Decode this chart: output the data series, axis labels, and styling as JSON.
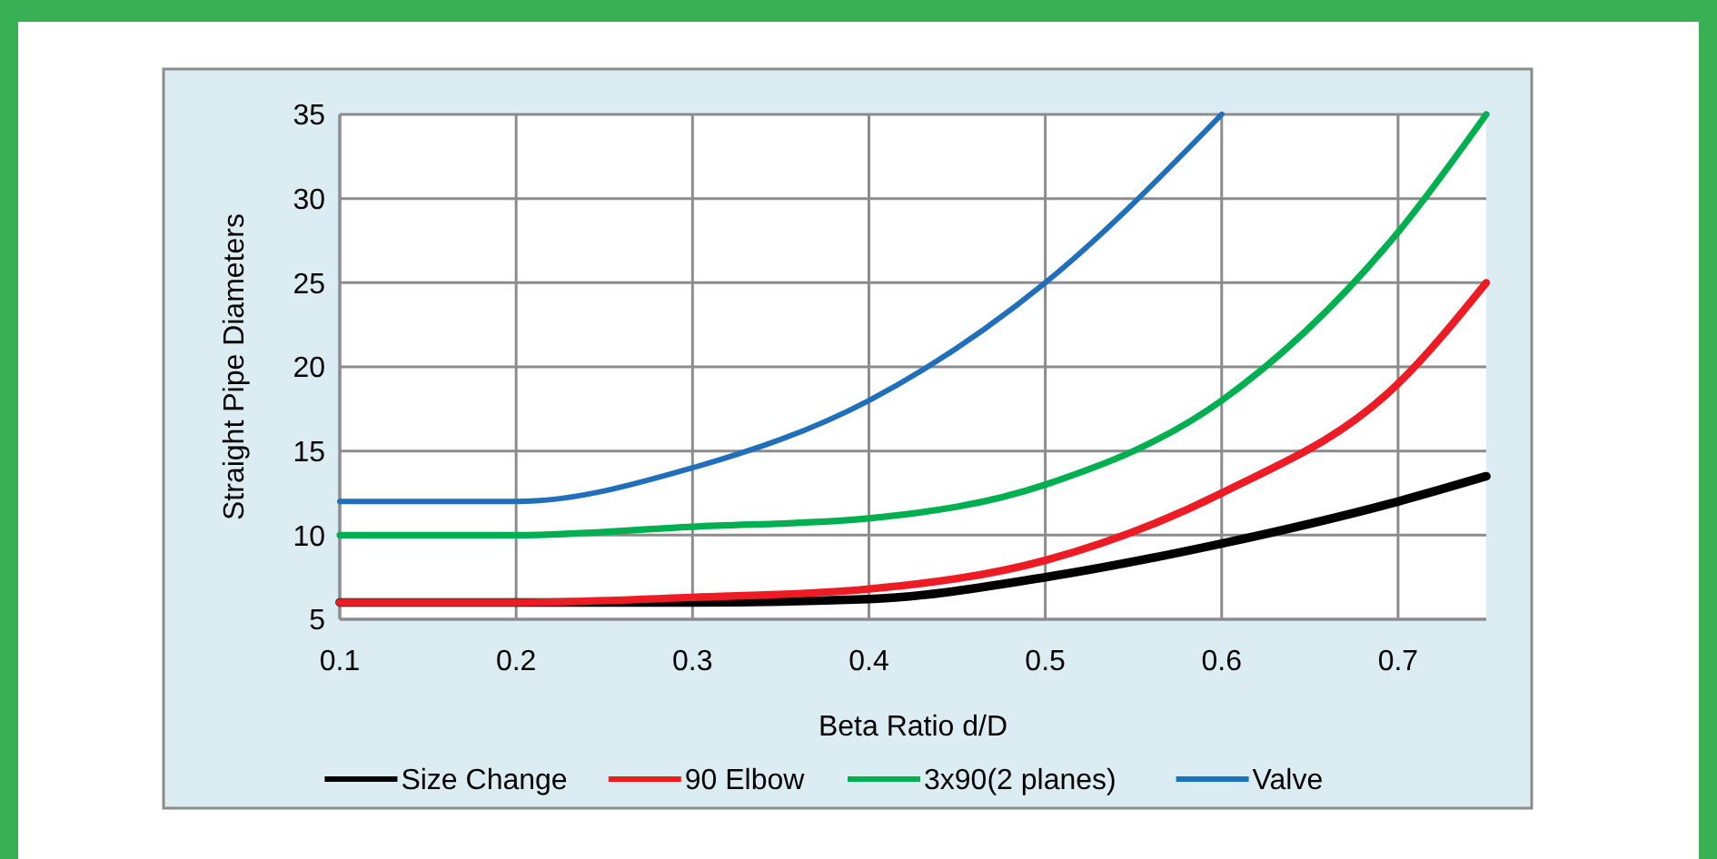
{
  "chart_data": {
    "type": "line",
    "xlabel": "Beta Ratio d/D",
    "ylabel": "Straight Pipe Diameters",
    "x": [
      0.1,
      0.2,
      0.3,
      0.4,
      0.5,
      0.6,
      0.7,
      0.75
    ],
    "series": [
      {
        "name": "Size Change",
        "color": "#000000",
        "values": [
          6,
          6,
          6,
          6.2,
          7.5,
          9.5,
          12,
          13.5
        ]
      },
      {
        "name": "90 Elbow",
        "color": "#ed1c24",
        "values": [
          6,
          6,
          6.3,
          6.8,
          8.5,
          12.5,
          19,
          25
        ]
      },
      {
        "name": "3x90(2 planes)",
        "color": "#00b050",
        "values": [
          10,
          10,
          10.5,
          11,
          13,
          18,
          28,
          35
        ]
      },
      {
        "name": "Valve",
        "color": "#1f6fba",
        "values": [
          12,
          12,
          14,
          18,
          25,
          35,
          null,
          null
        ]
      }
    ],
    "xlim": [
      0.1,
      0.75
    ],
    "xticks": [
      0.1,
      0.2,
      0.3,
      0.4,
      0.5,
      0.6,
      0.7
    ],
    "ylim": [
      5,
      35
    ],
    "yticks": [
      5,
      10,
      15,
      20,
      25,
      30,
      35
    ],
    "grid": true,
    "legend": "bottom",
    "marker": "none",
    "line_style": "solid"
  }
}
